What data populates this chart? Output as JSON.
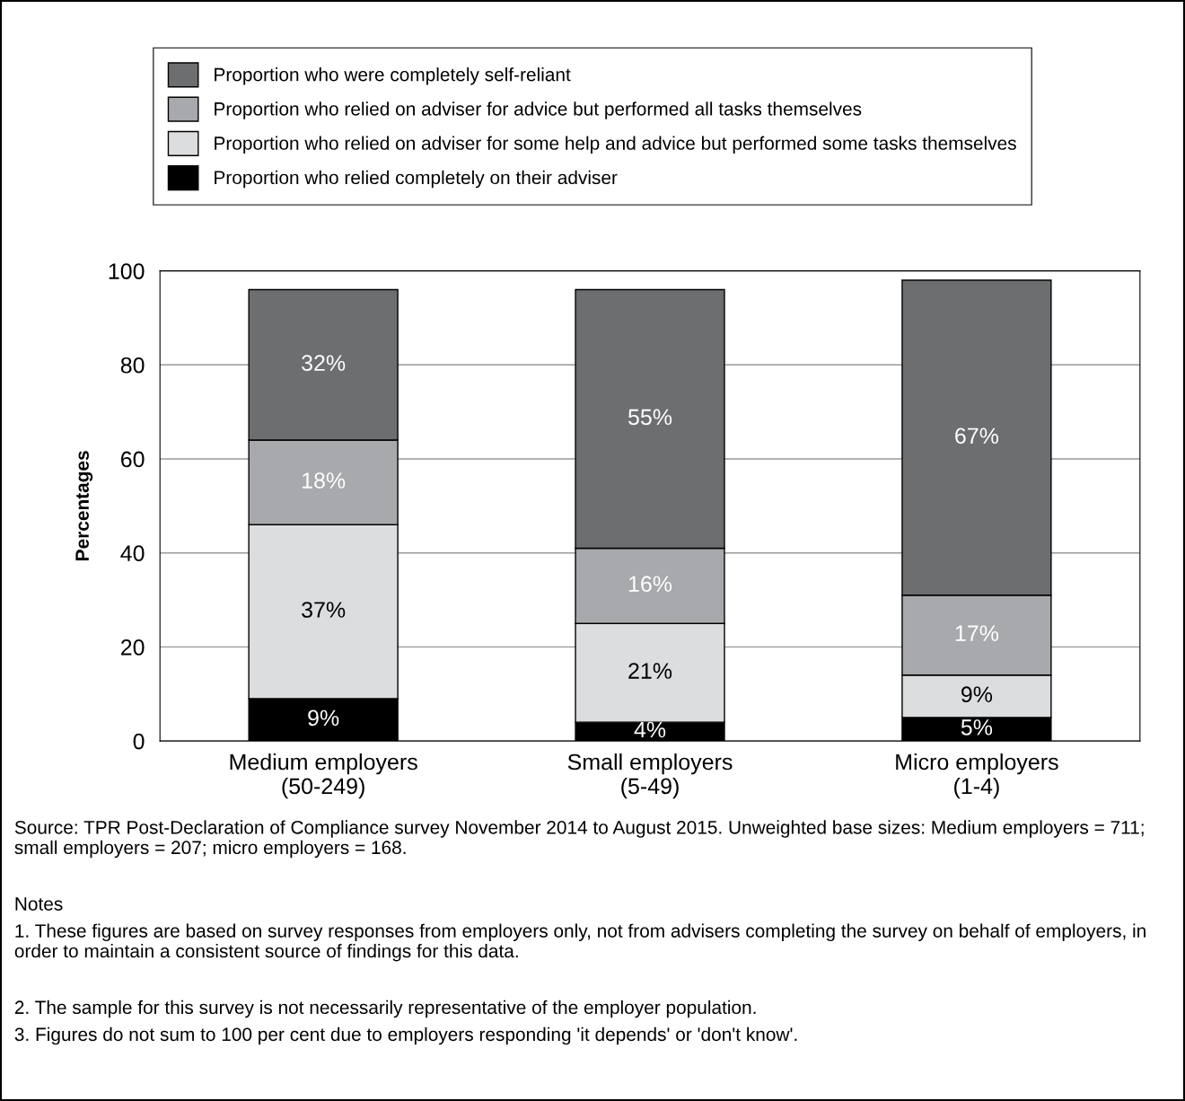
{
  "chart_data": {
    "type": "bar",
    "stacked": true,
    "ylabel": "Percentages",
    "categories": [
      "Medium employers\n(50-249)",
      "Small employers\n(5-49)",
      "Micro employers\n(1-4)"
    ],
    "series": [
      {
        "name": "Proportion who relied completely on their adviser",
        "color": "#000000",
        "values": [
          9,
          4,
          5
        ],
        "value_labels": [
          "9%",
          "4%",
          "5%"
        ]
      },
      {
        "name": "Proportion who relied on adviser for some help and advice but performed some tasks themselves",
        "color": "#dcdddf",
        "values": [
          37,
          21,
          9
        ],
        "value_labels": [
          "37%",
          "21%",
          "9%"
        ]
      },
      {
        "name": "Proportion who relied on adviser for advice but performed all tasks themselves",
        "color": "#a7a9ac",
        "values": [
          18,
          16,
          17
        ],
        "value_labels": [
          "18%",
          "16%",
          "17%"
        ]
      },
      {
        "name": "Proportion who were completely self-reliant",
        "color": "#6d6e70",
        "values": [
          32,
          55,
          67
        ],
        "value_labels": [
          "32%",
          "55%",
          "67%"
        ]
      }
    ],
    "ylim": [
      0,
      100
    ],
    "yticks": [
      0,
      20,
      40,
      60,
      80,
      100
    ],
    "grid": "y",
    "legend": "top",
    "annotations": [
      "Source: TPR Post-Declaration of Compliance survey November 2014 to August 2015. Unweighted base sizes: Medium employers = 711; small employers = 207; micro employers = 168.",
      "Notes",
      "1. These figures are based on survey responses from employers only, not from advisers completing the survey on behalf of employers, in order to maintain a consistent source of findings for this data.",
      "2. The sample for this survey is not necessarily representative of the employer population.",
      "3. Figures do not sum to 100 per cent due to employers responding 'it depends' or 'don't know'."
    ]
  }
}
